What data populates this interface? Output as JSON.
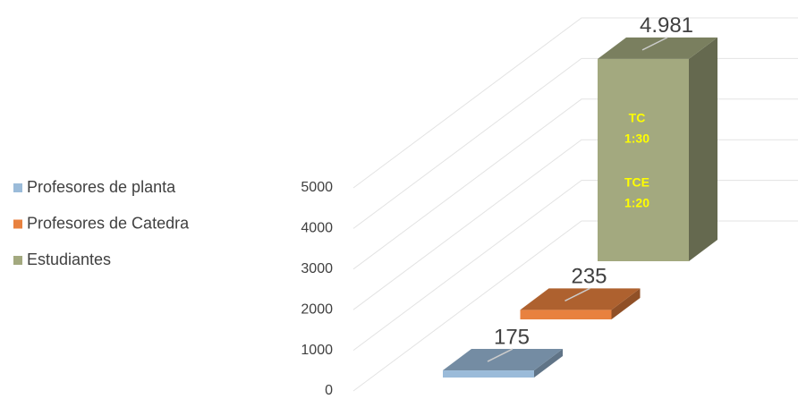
{
  "chart_data": {
    "type": "bar3d",
    "categories": [
      null
    ],
    "series": [
      {
        "name": "Profesores de planta",
        "color": "#9bbbd9",
        "values": [
          175
        ]
      },
      {
        "name": "Profesores de Catedra",
        "color": "#e8813f",
        "values": [
          235
        ]
      },
      {
        "name": "Estudiantes",
        "color": "#a3a97f",
        "values": [
          4981
        ],
        "value_labels": [
          "4.981"
        ]
      }
    ],
    "annotations": [
      "TC",
      "1:30",
      "TCE",
      "1:20"
    ],
    "ylim": [
      0,
      5000
    ],
    "yticks": [
      0,
      1000,
      2000,
      3000,
      4000,
      5000
    ],
    "grid": true,
    "legend": "left"
  }
}
